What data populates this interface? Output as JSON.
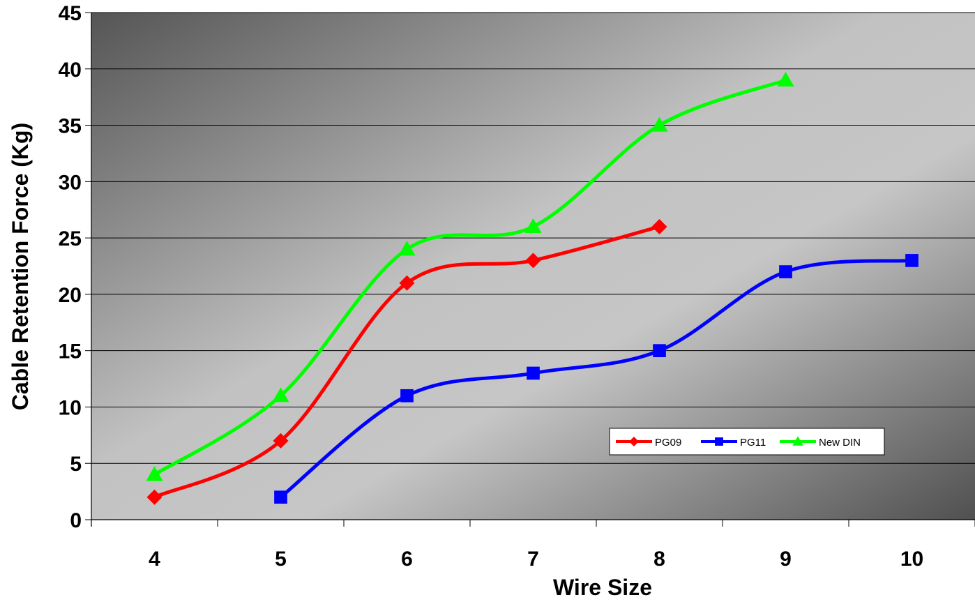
{
  "chart_data": {
    "type": "line",
    "title": "",
    "xlabel": "Wire Size",
    "ylabel": "Cable Retention Force (Kg)",
    "categories": [
      "4",
      "5",
      "6",
      "7",
      "8",
      "9",
      "10"
    ],
    "y_ticks": [
      "0",
      "5",
      "10",
      "15",
      "20",
      "25",
      "30",
      "35",
      "40",
      "45"
    ],
    "ylim": [
      0,
      45
    ],
    "grid": "horizontal",
    "legend_position": "inside-bottom-right",
    "series": [
      {
        "name": "PG09",
        "color": "#ff0000",
        "marker": "diamond",
        "x": [
          4,
          5,
          6,
          7,
          8
        ],
        "values": [
          2,
          7,
          21,
          23,
          26
        ]
      },
      {
        "name": "PG11",
        "color": "#0000ff",
        "marker": "square",
        "x": [
          5,
          6,
          7,
          8,
          9,
          10
        ],
        "values": [
          2,
          11,
          13,
          15,
          22,
          23
        ]
      },
      {
        "name": "New DIN",
        "color": "#00ff00",
        "marker": "triangle",
        "x": [
          4,
          5,
          6,
          7,
          8,
          9
        ],
        "values": [
          4,
          11,
          24,
          26,
          35,
          39
        ]
      }
    ]
  }
}
